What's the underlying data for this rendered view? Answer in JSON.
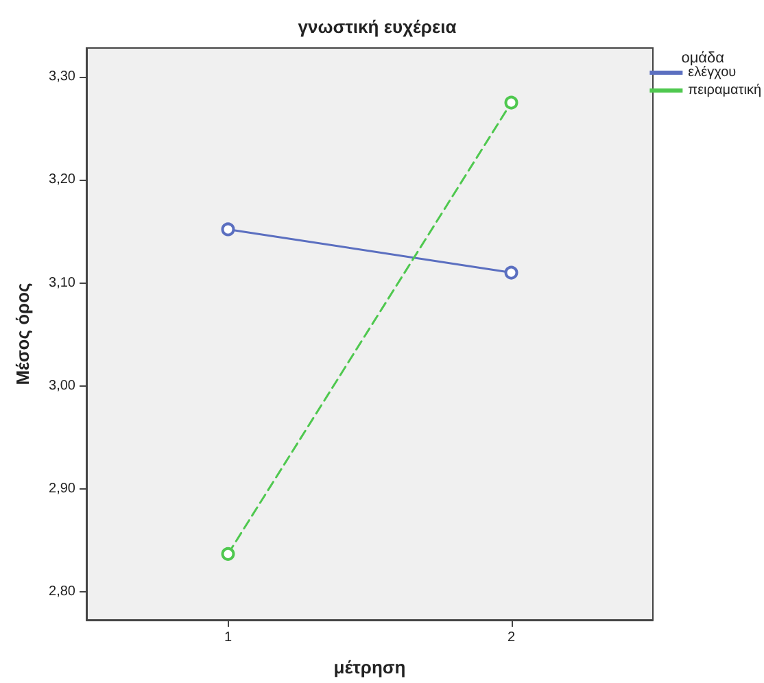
{
  "chart_data": {
    "type": "line",
    "title": "γνωστική ευχέρεια",
    "xlabel": "μέτρηση",
    "ylabel": "Μέσος όρος",
    "legend_title": "ομάδα",
    "categories": [
      "1",
      "2"
    ],
    "series": [
      {
        "name": "ελέγχου",
        "color": "#5b6fc0",
        "values": [
          3.152,
          3.11
        ],
        "line_style": "solid"
      },
      {
        "name": "πειραματική",
        "color": "#4fc84f",
        "values": [
          2.837,
          3.275
        ],
        "line_style": "dashed"
      }
    ],
    "ylim": [
      2.773,
      3.328
    ],
    "yticks": [
      {
        "value": 2.8,
        "label": "2,80"
      },
      {
        "value": 2.9,
        "label": "2,90"
      },
      {
        "value": 3.0,
        "label": "3,00"
      },
      {
        "value": 3.1,
        "label": "3,10"
      },
      {
        "value": 3.2,
        "label": "3,20"
      },
      {
        "value": 3.3,
        "label": "3,30"
      }
    ],
    "grid": false,
    "legend": "right",
    "marker": "circle"
  }
}
